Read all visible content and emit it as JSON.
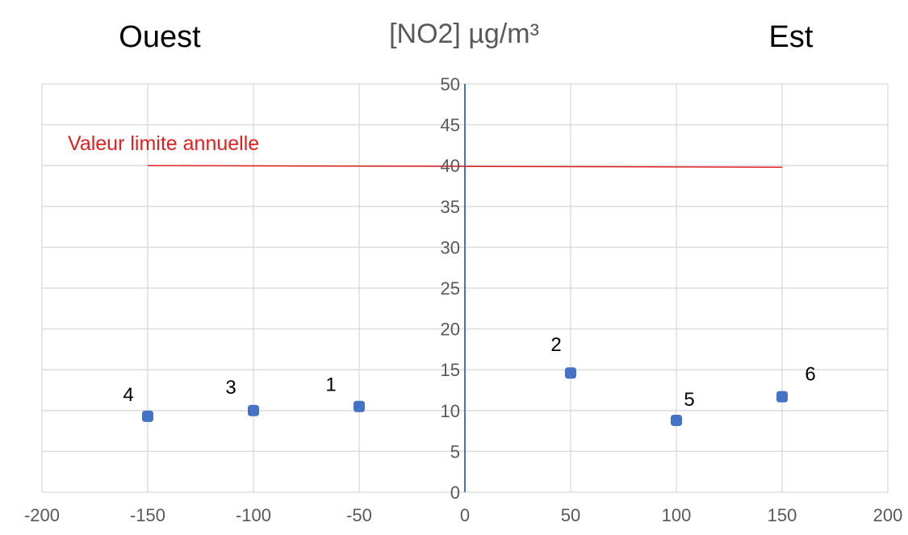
{
  "chart_data": {
    "type": "scatter",
    "title": "[NO2] µg/m³",
    "left_label": "Ouest",
    "right_label": "Est",
    "xlim": [
      -200,
      200
    ],
    "ylim": [
      0,
      50
    ],
    "x_ticks": [
      "-200",
      "-150",
      "-100",
      "-50",
      "0",
      "50",
      "100",
      "150",
      "200"
    ],
    "y_ticks": [
      "0",
      "5",
      "10",
      "15",
      "20",
      "25",
      "30",
      "35",
      "40",
      "45",
      "50"
    ],
    "grid": "vertical",
    "points": [
      {
        "label": "4",
        "x": -150,
        "y": 9.3
      },
      {
        "label": "3",
        "x": -100,
        "y": 10.0
      },
      {
        "label": "1",
        "x": -50,
        "y": 10.5
      },
      {
        "label": "2",
        "x": 50,
        "y": 14.6
      },
      {
        "label": "5",
        "x": 100,
        "y": 8.8
      },
      {
        "label": "6",
        "x": 150,
        "y": 11.7
      }
    ],
    "limit_line": {
      "label": "Valeur limite annuelle",
      "value": 40,
      "x_from": -150,
      "x_to": 150
    },
    "colors": {
      "points": "#4472c4",
      "y_axis": "#4472c4",
      "limit": "#e02020",
      "grid": "#d9d9d9"
    }
  }
}
